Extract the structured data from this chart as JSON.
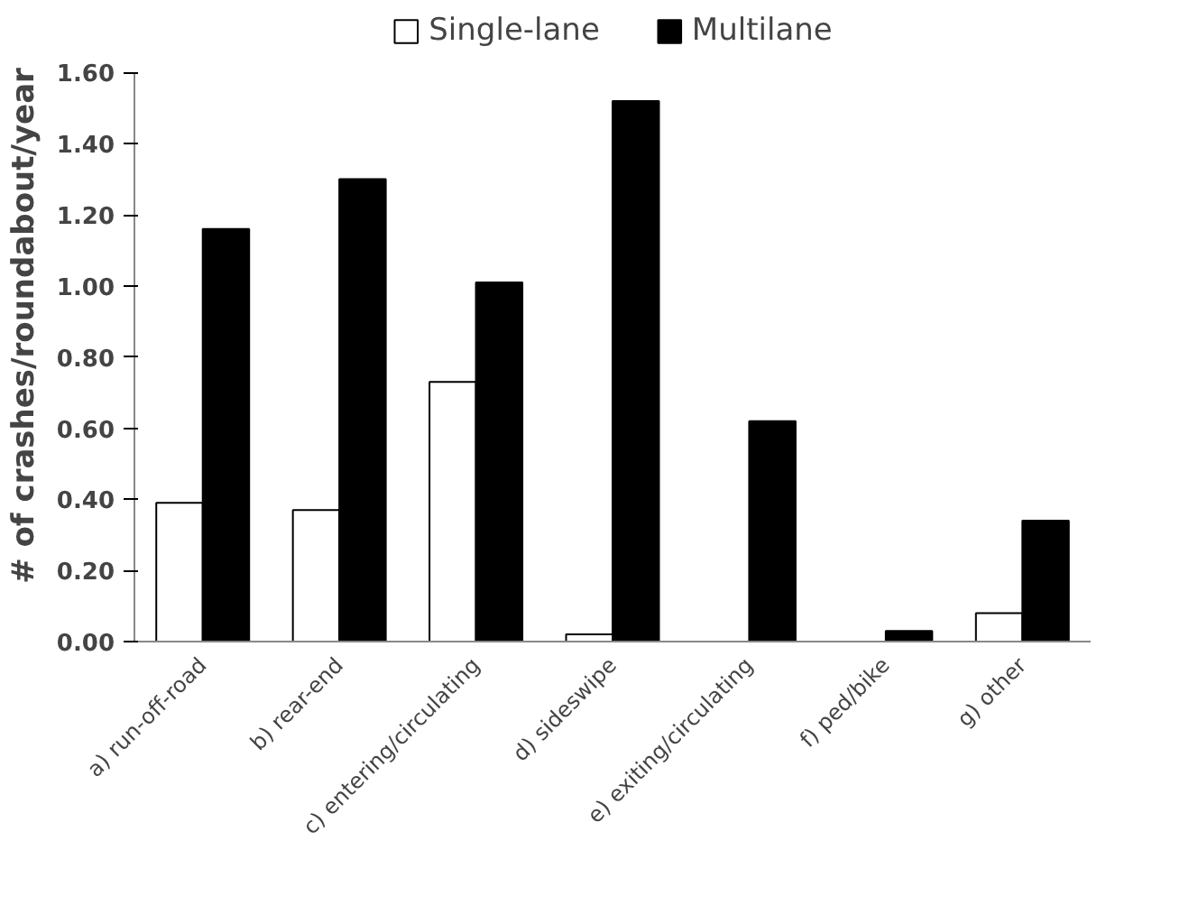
{
  "chart_data": {
    "type": "bar",
    "ylabel": "# of crashes/roundabout/year",
    "categories": [
      "a) run-off-road",
      "b) rear-end",
      "c) entering/circulating",
      "d) sideswipe",
      "e) exiting/circulating",
      "f) ped/bike",
      "g) other"
    ],
    "series": [
      {
        "name": "Single-lane",
        "color": "#ffffff",
        "values": [
          0.39,
          0.37,
          0.73,
          0.02,
          0,
          0,
          0.08
        ]
      },
      {
        "name": "Multilane",
        "color": "#000000",
        "values": [
          1.16,
          1.3,
          1.01,
          1.52,
          0.62,
          0.03,
          0.34
        ]
      }
    ],
    "ylim": [
      0,
      1.6
    ],
    "yticks": [
      {
        "value": 0,
        "label": "0.00"
      },
      {
        "value": 0.2,
        "label": "0.20"
      },
      {
        "value": 0.4,
        "label": "0.40"
      },
      {
        "value": 0.6,
        "label": "0.60"
      },
      {
        "value": 0.8,
        "label": "0.80"
      },
      {
        "value": 1.0,
        "label": "1.00"
      },
      {
        "value": 1.2,
        "label": "1.20"
      },
      {
        "value": 1.4,
        "label": "1.40"
      },
      {
        "value": 1.6,
        "label": "1.60"
      }
    ],
    "grid": false,
    "legend": "top"
  }
}
